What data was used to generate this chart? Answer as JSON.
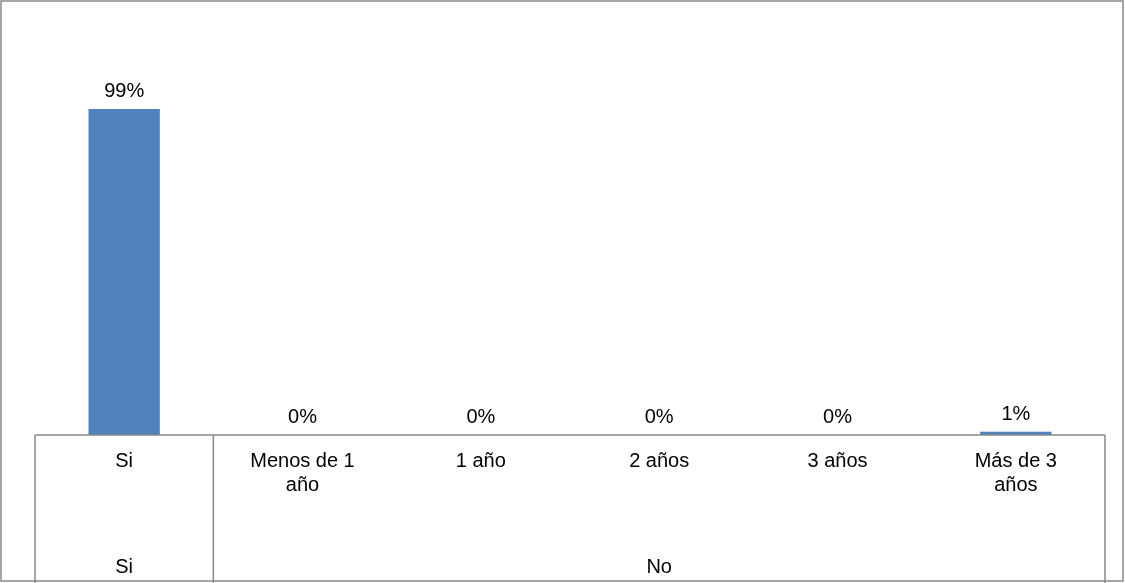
{
  "chart_data": {
    "type": "bar",
    "categories": [
      "Si",
      "Menos de 1 año",
      "1 año",
      "2 años",
      "3 años",
      "Más de 3 años"
    ],
    "values": [
      99,
      0,
      0,
      0,
      0,
      1
    ],
    "value_labels": [
      "99%",
      "0%",
      "0%",
      "0%",
      "0%",
      "1%"
    ],
    "color": "#4f81bd",
    "annotations": [
      "Si",
      "No"
    ]
  }
}
